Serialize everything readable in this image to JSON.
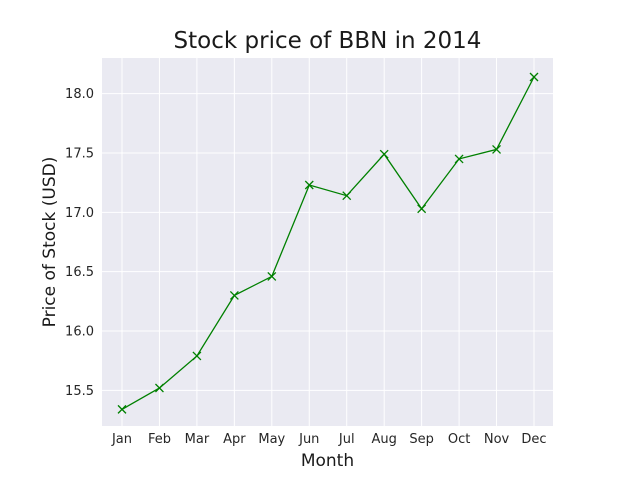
{
  "chart_data": {
    "type": "line",
    "title": "Stock price of BBN in 2014",
    "xlabel": "Month",
    "ylabel": "Price of Stock (USD)",
    "categories": [
      "Jan",
      "Feb",
      "Mar",
      "Apr",
      "May",
      "Jun",
      "Jul",
      "Aug",
      "Sep",
      "Oct",
      "Nov",
      "Dec"
    ],
    "series": [
      {
        "values": [
          15.34,
          15.52,
          15.79,
          16.3,
          16.46,
          17.23,
          17.14,
          17.49,
          17.03,
          17.45,
          17.53,
          18.14
        ]
      }
    ],
    "ylim": [
      15.2,
      18.3
    ],
    "yticks": [
      15.5,
      16.0,
      16.5,
      17.0,
      17.5,
      18.0
    ],
    "ytick_labels": [
      "15.5",
      "16.0",
      "16.5",
      "17.0",
      "17.5",
      "18.0"
    ],
    "grid": true,
    "marker": "x",
    "colors": {
      "line": "#008000",
      "plot_background": "#eaeaf2",
      "grid": "#ffffff"
    }
  }
}
